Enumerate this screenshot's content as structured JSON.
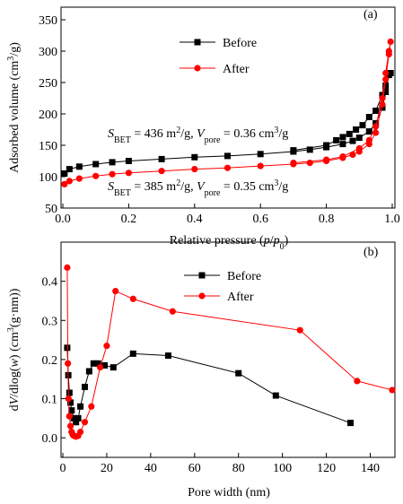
{
  "chart_data": [
    {
      "type": "line",
      "panel_label": "(a)",
      "x_label": [
        "Relative pressure (",
        "p",
        "/",
        "p",
        "0",
        ")"
      ],
      "y_label": [
        "Adsorbed volume (cm",
        "3",
        "/g)"
      ],
      "xlim": [
        0,
        1.0
      ],
      "ylim": [
        50,
        370
      ],
      "xticks": [
        {
          "value": 0,
          "label": "0.0"
        },
        0.2,
        0.4,
        0.6,
        0.8,
        {
          "value": 1.0,
          "label": "1.0"
        }
      ],
      "yticks": [
        50,
        100,
        150,
        200,
        250,
        300,
        350
      ],
      "annotations": [
        [
          "S",
          "BET",
          " = 436 m",
          "2",
          "/g, ",
          "V",
          "pore",
          " = 0.36 cm",
          "3",
          "/g"
        ],
        [
          "S",
          "BET",
          " = 385 m",
          "2",
          "/g, ",
          "V",
          "pore",
          " = 0.35 cm",
          "3",
          "/g"
        ]
      ],
      "series": [
        {
          "name": "Before",
          "color": "#000000",
          "marker": "square",
          "x": [
            0.005,
            0.02,
            0.05,
            0.1,
            0.15,
            0.2,
            0.3,
            0.4,
            0.5,
            0.6,
            0.7,
            0.75,
            0.8,
            0.85,
            0.88,
            0.9,
            0.93,
            0.95,
            0.97,
            0.98,
            0.99,
            0.995,
            0.98,
            0.97,
            0.95,
            0.93,
            0.91,
            0.89,
            0.87,
            0.85,
            0.83,
            0.8,
            0.7
          ],
          "values": [
            105,
            112,
            116,
            120,
            123,
            125,
            128,
            131,
            133,
            136,
            140,
            143,
            147,
            152,
            157,
            162,
            172,
            185,
            210,
            235,
            262,
            265,
            245,
            230,
            205,
            195,
            182,
            175,
            168,
            163,
            158,
            150,
            142
          ]
        },
        {
          "name": "After",
          "color": "#ff0000",
          "marker": "circle",
          "x": [
            0.005,
            0.02,
            0.05,
            0.1,
            0.15,
            0.2,
            0.3,
            0.4,
            0.5,
            0.6,
            0.7,
            0.75,
            0.8,
            0.85,
            0.88,
            0.9,
            0.93,
            0.95,
            0.97,
            0.98,
            0.99,
            0.995,
            0.99,
            0.98,
            0.97,
            0.95,
            0.93,
            0.9,
            0.85,
            0.8,
            0.7
          ],
          "values": [
            88,
            93,
            97,
            101,
            104,
            106,
            109,
            112,
            114,
            117,
            120,
            122,
            125,
            130,
            135,
            140,
            152,
            170,
            215,
            255,
            295,
            315,
            300,
            265,
            225,
            180,
            158,
            145,
            132,
            127,
            122
          ]
        }
      ]
    },
    {
      "type": "line",
      "panel_label": "(b)",
      "x_label": [
        "Pore width (nm)"
      ],
      "y_label": [
        "d",
        "V",
        "/dlog(",
        "w",
        ") (cm",
        "3",
        "(g·nm))"
      ],
      "xlim": [
        0,
        150
      ],
      "ylim": [
        -0.05,
        0.5
      ],
      "xticks": [
        0,
        20,
        40,
        60,
        80,
        100,
        120,
        140
      ],
      "yticks": [
        {
          "value": 0,
          "label": "0.0"
        },
        0.1,
        0.2,
        0.3,
        0.4
      ],
      "series": [
        {
          "name": "Before",
          "color": "#000000",
          "marker": "square",
          "x": [
            2,
            2.5,
            3,
            3.5,
            4,
            5,
            6,
            7,
            8,
            10,
            12,
            14,
            16,
            19,
            23,
            32,
            48,
            80,
            97,
            131
          ],
          "values": [
            0.23,
            0.16,
            0.115,
            0.09,
            0.07,
            0.05,
            0.04,
            0.05,
            0.08,
            0.13,
            0.17,
            0.19,
            0.19,
            0.185,
            0.18,
            0.215,
            0.21,
            0.165,
            0.108,
            0.038
          ]
        },
        {
          "name": "After",
          "color": "#ff0000",
          "marker": "circle",
          "x": [
            2,
            2.3,
            2.6,
            3,
            3.5,
            4,
            4.5,
            5,
            6,
            7,
            8,
            10,
            13,
            17,
            20,
            24,
            32,
            50,
            108,
            134,
            150
          ],
          "values": [
            0.435,
            0.19,
            0.1,
            0.055,
            0.03,
            0.015,
            0.008,
            0.005,
            0.003,
            0.005,
            0.015,
            0.04,
            0.08,
            0.18,
            0.235,
            0.375,
            0.355,
            0.323,
            0.275,
            0.145,
            0.122
          ]
        }
      ]
    }
  ]
}
